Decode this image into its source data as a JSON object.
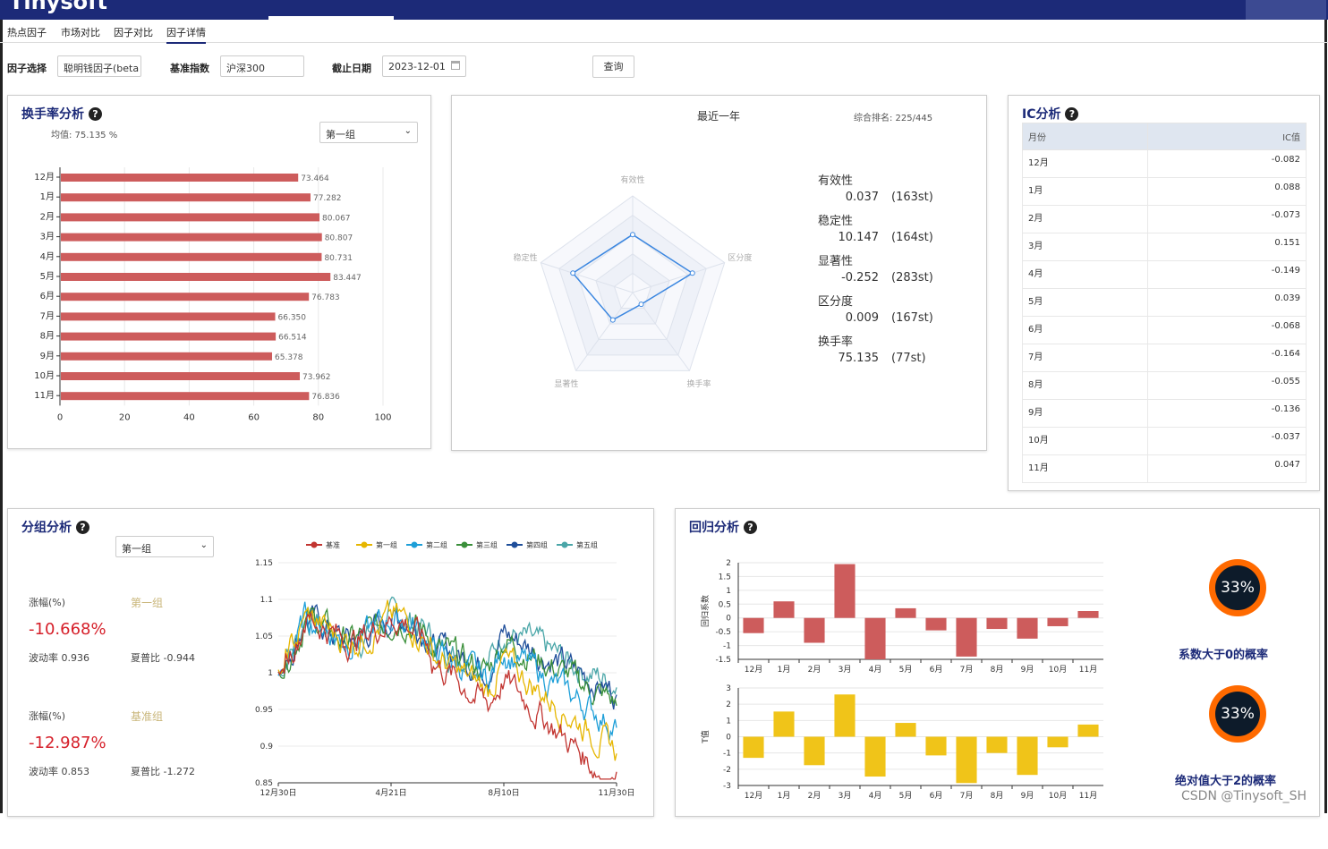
{
  "app": {
    "logo_text": "Tinysoft"
  },
  "nav": {
    "tabs": [
      "热点因子",
      "市场对比",
      "因子对比",
      "因子详情"
    ],
    "active": 3
  },
  "filters": {
    "factor_label": "因子选择",
    "factor_value": "聪明钱因子(beta",
    "index_label": "基准指数",
    "index_value": "沪深300",
    "date_label": "截止日期",
    "date_value": "2023-12-01",
    "query_button": "查询"
  },
  "turnover": {
    "title": "换手率分析",
    "mean_text": "均值: 75.135 %",
    "group_select": "第一组"
  },
  "radar": {
    "title": "最近一年",
    "rank_text": "综合排名: 225/445",
    "axes": [
      "有效性",
      "区分度",
      "换手率",
      "显著性",
      "稳定性"
    ],
    "metrics": [
      {
        "label": "有效性",
        "value": "0.037",
        "rank": "(163st)"
      },
      {
        "label": "稳定性",
        "value": "10.147",
        "rank": "(164st)"
      },
      {
        "label": "显著性",
        "value": "-0.252",
        "rank": "(283st)"
      },
      {
        "label": "区分度",
        "value": "0.009",
        "rank": "(167st)"
      },
      {
        "label": "换手率",
        "value": "75.135",
        "rank": "(77st)"
      }
    ]
  },
  "ic": {
    "title": "IC分析",
    "col_month": "月份",
    "col_value": "IC值",
    "rows": [
      {
        "month": "12月",
        "value": "-0.082"
      },
      {
        "month": "1月",
        "value": "0.088"
      },
      {
        "month": "2月",
        "value": "-0.073"
      },
      {
        "month": "3月",
        "value": "0.151"
      },
      {
        "month": "4月",
        "value": "-0.149"
      },
      {
        "month": "5月",
        "value": "0.039"
      },
      {
        "month": "6月",
        "value": "-0.068"
      },
      {
        "month": "7月",
        "value": "-0.164"
      },
      {
        "month": "8月",
        "value": "-0.055"
      },
      {
        "month": "9月",
        "value": "-0.136"
      },
      {
        "month": "10月",
        "value": "-0.037"
      },
      {
        "month": "11月",
        "value": "0.047"
      }
    ]
  },
  "group": {
    "title": "分组分析",
    "select": "第一组",
    "g1": {
      "rise_label": "涨幅(%)",
      "name": "第一组",
      "rise": "-10.668%",
      "vol": "波动率 0.936",
      "sharpe": "夏普比 -0.944"
    },
    "g2": {
      "rise_label": "涨幅(%)",
      "name": "基准组",
      "rise": "-12.987%",
      "vol": "波动率 0.853",
      "sharpe": "夏普比 -1.272"
    }
  },
  "regression": {
    "title": "回归分析",
    "prob1_pct": "33%",
    "prob1_label": "系数大于0的概率",
    "prob2_pct": "33%",
    "prob2_label": "绝对值大于2的概率",
    "watermark": "CSDN @Tinysoft_SH"
  },
  "colors": {
    "navy": "#1c2a78",
    "bar_red": "#cd5c5c",
    "bar_yellow": "#f0c419",
    "red_text": "#d6202a"
  },
  "chart_data": [
    {
      "id": "turnover",
      "type": "bar",
      "orientation": "horizontal",
      "categories": [
        "12月",
        "1月",
        "2月",
        "3月",
        "4月",
        "5月",
        "6月",
        "7月",
        "8月",
        "9月",
        "10月",
        "11月"
      ],
      "values": [
        73.464,
        77.282,
        80.067,
        80.807,
        80.731,
        83.447,
        76.783,
        66.35,
        66.514,
        65.378,
        73.962,
        76.836
      ],
      "labels": [
        "73.464",
        "77.282",
        "80.067",
        "80.807",
        "80.731",
        "83.447",
        "76.783",
        "66.350",
        "66.514",
        "65.378",
        "73.962",
        "76.836"
      ],
      "xlim": [
        0,
        100
      ],
      "xticks": [
        "0",
        "20",
        "40",
        "60",
        "80",
        "100"
      ]
    },
    {
      "id": "radar",
      "type": "radar",
      "axes": [
        "有效性",
        "区分度",
        "换手率",
        "显著性",
        "稳定性"
      ],
      "values": [
        0.6,
        0.65,
        0.15,
        0.35,
        0.65
      ],
      "range": [
        0,
        1
      ]
    },
    {
      "id": "group_lines",
      "type": "line",
      "legend": [
        "基准",
        "第一组",
        "第二组",
        "第三组",
        "第四组",
        "第五组"
      ],
      "colors": [
        "#c23531",
        "#e6b600",
        "#1e9fd8",
        "#3a8f3a",
        "#1f4e9a",
        "#4aa6a8"
      ],
      "xticks": [
        "12月30日",
        "4月21日",
        "8月10日",
        "11月30日"
      ],
      "ylim": [
        0.85,
        1.15
      ],
      "yticks": [
        "1.15",
        "1.1",
        "1.05",
        "1",
        "0.95",
        "0.9",
        "0.85"
      ],
      "series_end": [
        0.865,
        0.89,
        0.925,
        0.955,
        0.97,
        0.98
      ]
    },
    {
      "id": "regression_coef",
      "type": "bar",
      "ylabel": "回归系数",
      "categories": [
        "12月",
        "1月",
        "2月",
        "3月",
        "4月",
        "5月",
        "6月",
        "7月",
        "8月",
        "9月",
        "10月",
        "11月"
      ],
      "values": [
        -0.55,
        0.6,
        -0.9,
        1.95,
        -1.5,
        0.35,
        -0.45,
        -1.4,
        -0.4,
        -0.75,
        -0.3,
        0.25
      ],
      "ylim": [
        -1.5,
        2
      ],
      "yticks": [
        "2",
        "1.5",
        "1",
        "0.5",
        "0",
        "-0.5",
        "-1",
        "-1.5"
      ]
    },
    {
      "id": "regression_t",
      "type": "bar",
      "ylabel": "T值",
      "categories": [
        "12月",
        "1月",
        "2月",
        "3月",
        "4月",
        "5月",
        "6月",
        "7月",
        "8月",
        "9月",
        "10月",
        "11月"
      ],
      "values": [
        -1.3,
        1.55,
        -1.75,
        2.6,
        -2.45,
        0.85,
        -1.15,
        -2.85,
        -1.0,
        -2.35,
        -0.65,
        0.75
      ],
      "ylim": [
        -3,
        3
      ],
      "yticks": [
        "3",
        "2",
        "1",
        "0",
        "-1",
        "-2",
        "-3"
      ]
    }
  ]
}
